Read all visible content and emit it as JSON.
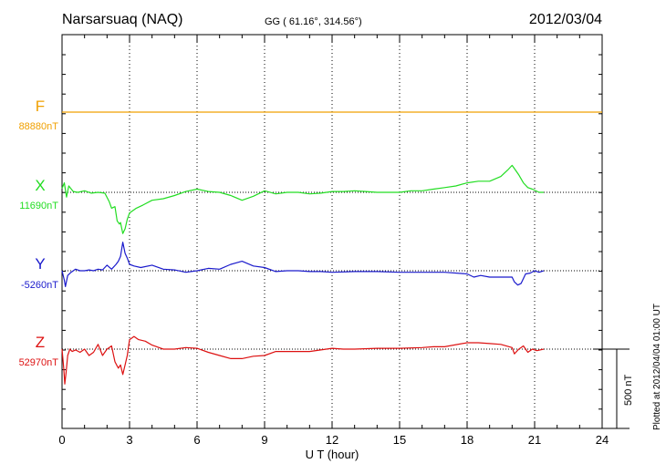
{
  "header": {
    "station": "Narsarsuaq (NAQ)",
    "coords": "GG ( 61.16°, 314.56°)",
    "date": "2012/03/04"
  },
  "footer": {
    "plotted": "Plotted at 2012/04/04 01:00 UT",
    "scale_label": "500 nT"
  },
  "chart_data": {
    "type": "line",
    "title": "Narsarsuaq (NAQ)",
    "xlabel": "U T (hour)",
    "ylabel": "",
    "xlim": [
      0,
      24
    ],
    "x_ticks": [
      0,
      3,
      6,
      9,
      12,
      15,
      18,
      21,
      24
    ],
    "x_tick_labels": [
      "0",
      "3",
      "6",
      "9",
      "12",
      "15",
      "18",
      "21",
      "24"
    ],
    "grid": true,
    "scale_bar_nT": 500,
    "series": [
      {
        "name": "F",
        "baseline_label": "88880nT",
        "color": "#f0a000",
        "base_nT": 88880,
        "x": [
          0,
          24
        ],
        "dev": [
          0,
          0
        ]
      },
      {
        "name": "X",
        "baseline_label": "11690nT",
        "color": "#22dd22",
        "base_nT": 11690,
        "x": [
          0,
          0.1,
          0.2,
          0.3,
          0.5,
          0.7,
          1.0,
          1.3,
          1.6,
          1.9,
          2.1,
          2.2,
          2.35,
          2.45,
          2.55,
          2.6,
          2.7,
          2.8,
          2.9,
          3.0,
          3.3,
          3.6,
          4.0,
          4.5,
          5.0,
          5.5,
          6.0,
          6.5,
          7.0,
          7.5,
          8.0,
          8.5,
          9.0,
          9.5,
          10.0,
          10.5,
          11.0,
          11.5,
          12.0,
          12.5,
          13.0,
          13.5,
          14.0,
          15.0,
          15.5,
          16.0,
          16.5,
          17.0,
          17.5,
          18.0,
          18.5,
          19.0,
          19.5,
          19.8,
          20.0,
          20.1,
          20.3,
          20.5,
          20.7,
          20.9,
          21.2,
          21.4
        ],
        "dev": [
          25,
          60,
          -30,
          40,
          5,
          0,
          10,
          -5,
          0,
          -5,
          -60,
          -100,
          -90,
          -180,
          -200,
          -190,
          -260,
          -230,
          -170,
          -130,
          -100,
          -80,
          -50,
          -40,
          -20,
          5,
          20,
          5,
          0,
          -20,
          -50,
          -25,
          10,
          -10,
          0,
          0,
          -10,
          -5,
          5,
          5,
          10,
          5,
          0,
          0,
          10,
          10,
          20,
          30,
          40,
          60,
          70,
          70,
          100,
          140,
          170,
          150,
          110,
          60,
          30,
          20,
          0,
          0
        ]
      },
      {
        "name": "Y",
        "baseline_label": "-5260nT",
        "color": "#1a1acc",
        "base_nT": -5260,
        "x": [
          0,
          0.1,
          0.15,
          0.25,
          0.4,
          0.6,
          0.8,
          1.0,
          1.2,
          1.4,
          1.6,
          1.8,
          2.0,
          2.2,
          2.4,
          2.5,
          2.6,
          2.7,
          2.8,
          2.9,
          3.0,
          3.2,
          3.5,
          4.0,
          4.5,
          5.0,
          5.5,
          6.0,
          6.5,
          7.0,
          7.5,
          8.0,
          8.5,
          9.0,
          9.5,
          10.0,
          10.5,
          11.0,
          11.5,
          12.0,
          13.0,
          14.0,
          15.0,
          16.0,
          17.0,
          18.0,
          18.3,
          18.6,
          19.0,
          19.5,
          20.0,
          20.1,
          20.25,
          20.4,
          20.6,
          20.8,
          21.0,
          21.2,
          21.4
        ],
        "dev": [
          0,
          -60,
          -100,
          -30,
          -10,
          10,
          0,
          0,
          5,
          0,
          10,
          5,
          35,
          10,
          40,
          60,
          90,
          180,
          110,
          80,
          40,
          30,
          20,
          35,
          10,
          5,
          -10,
          0,
          15,
          10,
          40,
          60,
          30,
          20,
          -5,
          0,
          0,
          -5,
          -5,
          -10,
          -5,
          -5,
          -10,
          -10,
          -10,
          -20,
          -40,
          -30,
          -40,
          -40,
          -40,
          -70,
          -90,
          -80,
          -20,
          -15,
          0,
          -10,
          0
        ]
      },
      {
        "name": "Z",
        "baseline_label": "52970nT",
        "color": "#dd1111",
        "base_nT": 52970,
        "x": [
          0,
          0.08,
          0.12,
          0.18,
          0.25,
          0.35,
          0.45,
          0.6,
          0.8,
          1.0,
          1.2,
          1.4,
          1.6,
          1.8,
          2.0,
          2.2,
          2.35,
          2.5,
          2.6,
          2.7,
          2.8,
          2.9,
          3.0,
          3.2,
          3.4,
          3.7,
          4.0,
          4.5,
          5.0,
          5.5,
          6.0,
          6.5,
          7.0,
          7.5,
          8.0,
          8.5,
          9.0,
          9.5,
          10.0,
          11.0,
          12.0,
          12.5,
          13.0,
          14.0,
          15.0,
          16.0,
          16.5,
          17.0,
          18.0,
          18.5,
          19.0,
          19.5,
          20.0,
          20.1,
          20.3,
          20.5,
          20.7,
          20.9,
          21.1,
          21.4
        ],
        "dev": [
          0,
          -130,
          -220,
          -150,
          -40,
          0,
          -15,
          -5,
          -20,
          0,
          -40,
          -20,
          30,
          -40,
          0,
          20,
          -80,
          -120,
          -100,
          -160,
          -100,
          -40,
          60,
          80,
          60,
          50,
          25,
          0,
          0,
          10,
          5,
          -20,
          -40,
          -60,
          -60,
          -45,
          -40,
          -15,
          -15,
          -15,
          5,
          0,
          0,
          5,
          5,
          10,
          15,
          15,
          40,
          40,
          35,
          30,
          10,
          -30,
          0,
          20,
          -20,
          0,
          -10,
          0
        ]
      }
    ]
  }
}
